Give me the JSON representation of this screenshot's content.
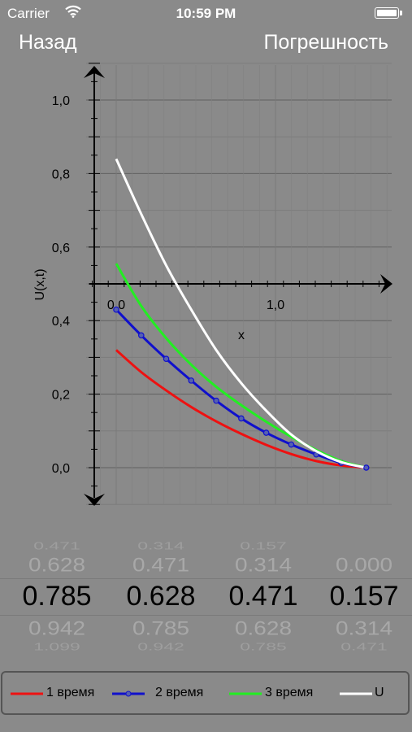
{
  "status": {
    "carrier": "Carrier",
    "time": "10:59 PM"
  },
  "nav": {
    "back_label": "Назад",
    "right_label": "Погрешность"
  },
  "chart_data": {
    "type": "line",
    "ylabel": "U(x,t)",
    "xlabel": "x",
    "x_ticks": [
      "0,0",
      "1,0"
    ],
    "y_ticks": [
      "0,0",
      "0,2",
      "0,4",
      "0,6",
      "0,8",
      "1,0"
    ],
    "xlim": [
      -0.15,
      1.75
    ],
    "ylim": [
      -0.1,
      1.1
    ],
    "grid": true,
    "series": [
      {
        "name": "1 время",
        "color": "#ee1111",
        "markers": false,
        "x": [
          0,
          0.157,
          0.314,
          0.471,
          0.628,
          0.785,
          0.942,
          1.099,
          1.256,
          1.413,
          1.57
        ],
        "y": [
          0.32,
          0.26,
          0.21,
          0.165,
          0.126,
          0.092,
          0.062,
          0.037,
          0.018,
          0.006,
          0.0
        ]
      },
      {
        "name": "2 время",
        "color": "#1010cc",
        "markers": true,
        "x": [
          0,
          0.157,
          0.314,
          0.471,
          0.628,
          0.785,
          0.942,
          1.099,
          1.256,
          1.413,
          1.57
        ],
        "y": [
          0.43,
          0.36,
          0.296,
          0.237,
          0.182,
          0.134,
          0.095,
          0.063,
          0.036,
          0.013,
          0.0
        ]
      },
      {
        "name": "3 время",
        "color": "#22ee22",
        "markers": false,
        "x": [
          0,
          0.157,
          0.314,
          0.471,
          0.628,
          0.785,
          0.942,
          1.099,
          1.256,
          1.413,
          1.57
        ],
        "y": [
          0.555,
          0.44,
          0.352,
          0.28,
          0.22,
          0.17,
          0.125,
          0.084,
          0.048,
          0.018,
          0.0
        ]
      },
      {
        "name": "U",
        "color": "#ffffff",
        "markers": false,
        "x": [
          0,
          0.157,
          0.314,
          0.471,
          0.628,
          0.785,
          0.942,
          1.099,
          1.256,
          1.413,
          1.57
        ],
        "y": [
          0.84,
          0.69,
          0.55,
          0.43,
          0.32,
          0.23,
          0.155,
          0.09,
          0.045,
          0.015,
          0.0
        ]
      }
    ]
  },
  "picker": {
    "columns": [
      [
        "0.471",
        "0.628",
        "0.785",
        "0.942",
        "1.099"
      ],
      [
        "0.314",
        "0.471",
        "0.628",
        "0.785",
        "0.942"
      ],
      [
        "0.157",
        "0.314",
        "0.471",
        "0.628",
        "0.785"
      ],
      [
        "",
        "0.000",
        "0.157",
        "0.314",
        "0.471"
      ]
    ]
  }
}
